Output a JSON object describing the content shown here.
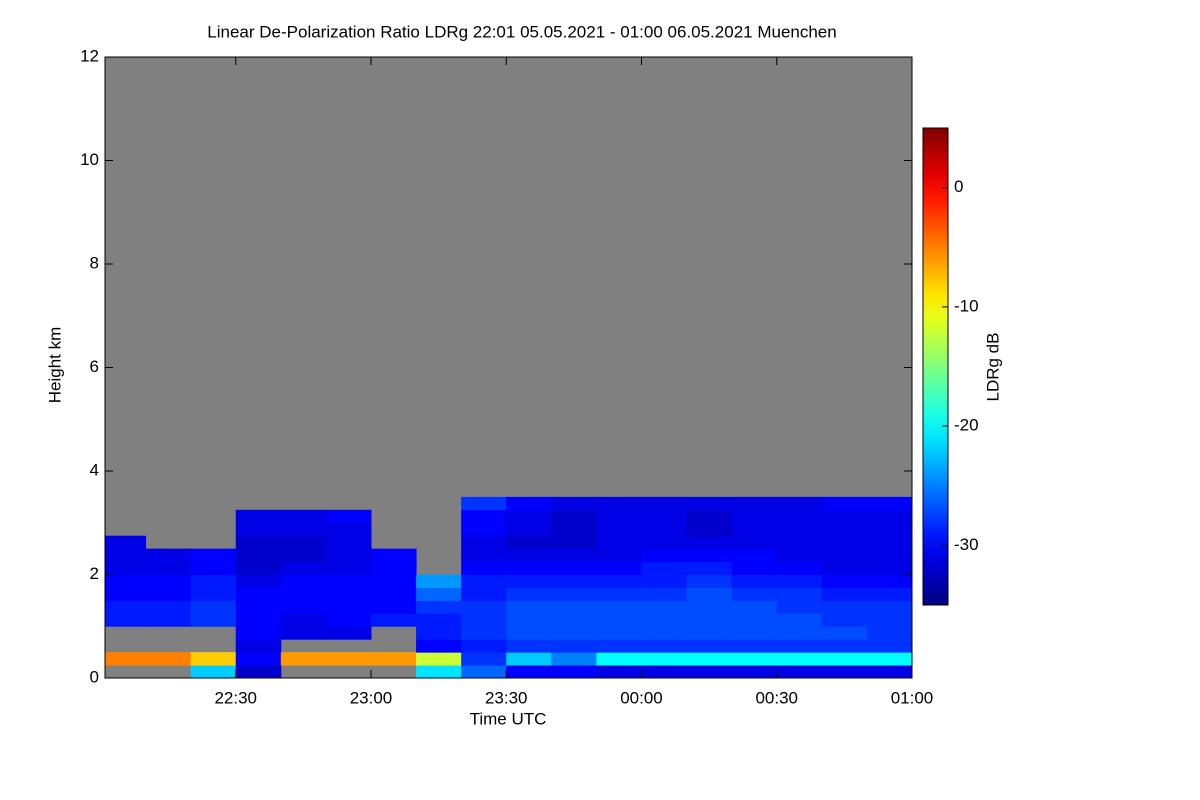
{
  "chart_data": {
    "type": "heatmap",
    "title": "Linear De-Polarization Ratio LDRg   22:01 05.05.2021 - 01:00 06.05.2021 Muenchen",
    "xlabel": "Time UTC",
    "ylabel": "Height km",
    "colorbar_label": "LDRg dB",
    "colormap": "jet",
    "background": "#808080",
    "xlim": [
      1,
      180
    ],
    "ylim": [
      0,
      12
    ],
    "xticks": [
      {
        "value": 30,
        "label": "22:30"
      },
      {
        "value": 60,
        "label": "23:00"
      },
      {
        "value": 90,
        "label": "23:30"
      },
      {
        "value": 120,
        "label": "00:00"
      },
      {
        "value": 150,
        "label": "00:30"
      },
      {
        "value": 180,
        "label": "01:00"
      }
    ],
    "yticks": [
      0,
      2,
      4,
      6,
      8,
      10,
      12
    ],
    "clim": [
      -35,
      5
    ],
    "cticks": [
      0,
      -10,
      -20,
      -30
    ],
    "xbins": [
      1,
      10,
      20,
      30,
      40,
      50,
      60,
      70,
      80,
      90,
      100,
      110,
      120,
      130,
      140,
      150,
      160,
      170,
      180
    ],
    "ybins": [
      0,
      0.25,
      0.5,
      0.75,
      1,
      1.25,
      1.5,
      1.75,
      2,
      2.25,
      2.5,
      2.75,
      3,
      3.25,
      3.5
    ],
    "z": [
      [
        null,
        null,
        -22,
        -32,
        null,
        null,
        null,
        -21,
        -26,
        -30,
        -30,
        -31,
        -31,
        -31,
        -31,
        -31,
        -31,
        -31
      ],
      [
        -5,
        -5,
        -8,
        -30,
        -6,
        -6,
        -6,
        -12,
        -28,
        -22,
        -25,
        -20,
        -20,
        -20,
        -20,
        -20,
        -20,
        -20
      ],
      [
        null,
        null,
        null,
        -31,
        null,
        null,
        null,
        -30,
        -29,
        -28,
        -28,
        -28,
        -28,
        -28,
        -28,
        -28,
        -28,
        -28
      ],
      [
        null,
        null,
        null,
        -30,
        -31,
        -31,
        null,
        -29,
        -28,
        -27,
        -27,
        -27,
        -27,
        -27,
        -27,
        -27,
        -27,
        -28
      ],
      [
        -29,
        -29,
        -28,
        -30,
        -31,
        -30,
        -29,
        -29,
        -28,
        -27,
        -27,
        -27,
        -27,
        -27,
        -27,
        -27,
        -28,
        -28
      ],
      [
        -29,
        -29,
        -28,
        -30,
        -30,
        -30,
        -30,
        -28,
        -28,
        -27,
        -27,
        -27,
        -27,
        -27,
        -27,
        -28,
        -28,
        -28
      ],
      [
        -30,
        -30,
        -29,
        -30,
        -30,
        -30,
        -30,
        -26,
        -29,
        -28,
        -28,
        -28,
        -28,
        -27,
        -28,
        -28,
        -29,
        -29
      ],
      [
        -30,
        -30,
        -29,
        -31,
        -30,
        -30,
        -30,
        -24,
        -29,
        -29,
        -29,
        -29,
        -29,
        -28,
        -29,
        -29,
        -30,
        -30
      ],
      [
        -31,
        -31,
        -30,
        -32,
        -31,
        -31,
        -30,
        null,
        -30,
        -30,
        -30,
        -30,
        -29,
        -29,
        -30,
        -30,
        -31,
        -31
      ],
      [
        -31,
        -31,
        -30,
        -32,
        -32,
        -31,
        -30,
        null,
        -31,
        -31,
        -31,
        -31,
        -30,
        -30,
        -30,
        -31,
        -31,
        -31
      ],
      [
        -31,
        null,
        null,
        -32,
        -32,
        -31,
        null,
        null,
        -31,
        -32,
        -32,
        -31,
        -31,
        -31,
        -31,
        -31,
        -31,
        -31
      ],
      [
        null,
        null,
        null,
        -31,
        -31,
        -31,
        null,
        null,
        -30,
        -31,
        -32,
        -31,
        -31,
        -32,
        -31,
        -31,
        -31,
        -31
      ],
      [
        null,
        null,
        null,
        -31,
        -31,
        -30,
        null,
        null,
        -30,
        -31,
        -32,
        -31,
        -31,
        -32,
        -31,
        -31,
        -31,
        -31
      ],
      [
        null,
        null,
        null,
        null,
        null,
        null,
        null,
        null,
        -28,
        -30,
        -31,
        -31,
        -31,
        -31,
        -31,
        -31,
        -30,
        -30
      ]
    ]
  }
}
